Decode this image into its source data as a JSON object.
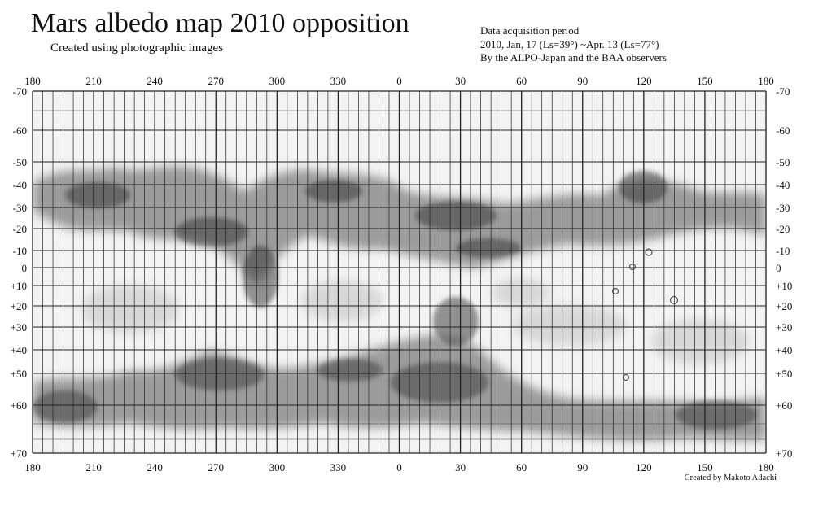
{
  "title": "Mars albedo map 2010 opposition",
  "subtitle": "Created using photographic images",
  "info": {
    "line1": "Data acquisition period",
    "line2": "2010, Jan, 17 (Ls=39°) ~Apr. 13 (Ls=77°)",
    "line3": "By the ALPO-Japan and the BAA observers"
  },
  "credit": "Created by Makoto Adachi",
  "map": {
    "longitude_labels": [
      "180",
      "210",
      "240",
      "270",
      "300",
      "330",
      "0",
      "30",
      "60",
      "90",
      "120",
      "150",
      "180"
    ],
    "latitude_labels": [
      "-70",
      "-60",
      "-50",
      "-40",
      "-30",
      "-20",
      "-10",
      "0",
      "+10",
      "+20",
      "+30",
      "+40",
      "+50",
      "+60",
      "+70"
    ]
  }
}
